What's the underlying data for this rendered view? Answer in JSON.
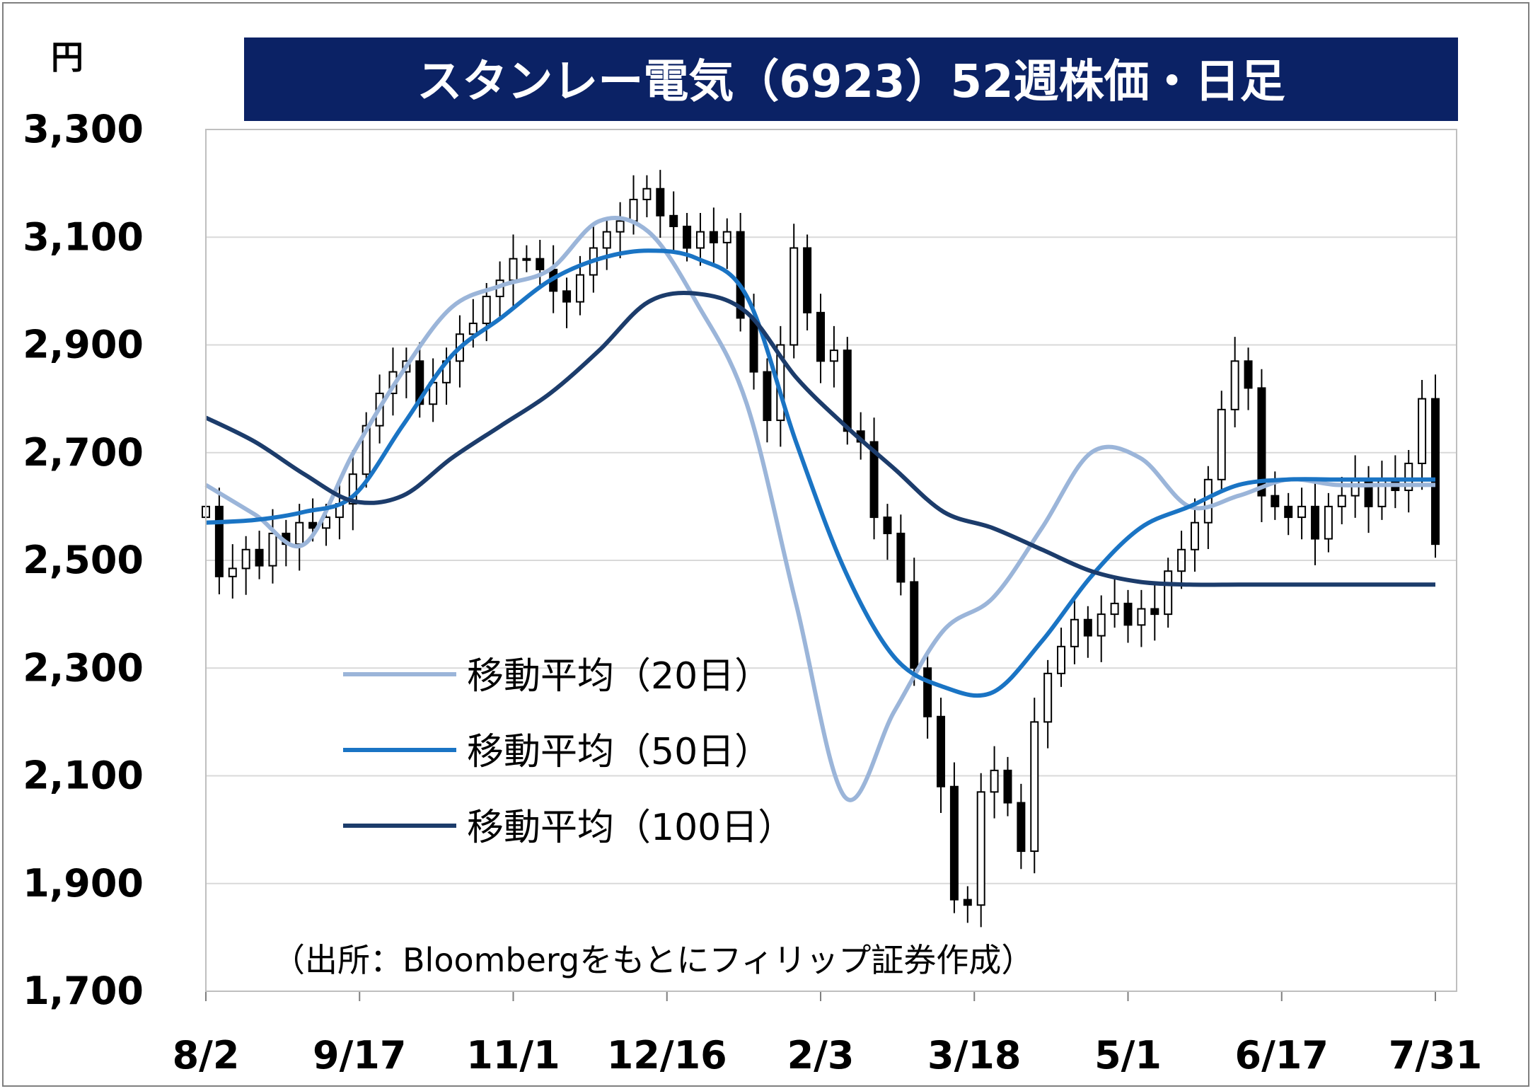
{
  "chart_data": {
    "type": "candlestick",
    "title": "スタンレー電気（6923）52週株価・日足",
    "ylabel": "円",
    "ylim": [
      1700,
      3300
    ],
    "y_ticks": [
      "3,300",
      "3,100",
      "2,900",
      "2,700",
      "2,500",
      "2,300",
      "2,100",
      "1,900",
      "1,700"
    ],
    "x_ticks": [
      "8/2",
      "9/17",
      "11/1",
      "12/16",
      "2/3",
      "3/18",
      "5/1",
      "6/17",
      "7/31"
    ],
    "grid": "horizontal",
    "legend": {
      "placement": "center-left",
      "entries": [
        "移動平均（20日）",
        "移動平均（50日）",
        "移動平均（100日）"
      ]
    },
    "source_note": "（出所：Bloombergをもとにフィリップ証券作成）",
    "colors": {
      "title_bg": "#0b2265",
      "ma20": "#9bb5d9",
      "ma50": "#1a74c4",
      "ma100": "#1c3c6b",
      "grid": "#d9d9d9",
      "candle": "#000000"
    },
    "ma_x": [
      0,
      0.04,
      0.08,
      0.12,
      0.16,
      0.2,
      0.24,
      0.28,
      0.32,
      0.36,
      0.4,
      0.44,
      0.48,
      0.52,
      0.56,
      0.6,
      0.64,
      0.68,
      0.72,
      0.76,
      0.8,
      0.84,
      0.88,
      0.92,
      0.96,
      1.0
    ],
    "series": [
      {
        "name": "移動平均（20日）",
        "values": [
          2640,
          2585,
          2530,
          2700,
          2850,
          2970,
          3010,
          3040,
          3130,
          3110,
          2975,
          2790,
          2420,
          2060,
          2220,
          2370,
          2430,
          2560,
          2700,
          2690,
          2600,
          2620,
          2650,
          2640,
          2640,
          2640
        ]
      },
      {
        "name": "移動平均（50日）",
        "values": [
          2570,
          2575,
          2590,
          2620,
          2750,
          2880,
          2950,
          3020,
          3060,
          3075,
          3060,
          2990,
          2720,
          2480,
          2320,
          2265,
          2255,
          2350,
          2470,
          2560,
          2600,
          2640,
          2650,
          2650,
          2650,
          2650
        ]
      },
      {
        "name": "移動平均（100日）",
        "values": [
          2765,
          2720,
          2660,
          2610,
          2620,
          2690,
          2750,
          2810,
          2890,
          2980,
          2995,
          2960,
          2840,
          2750,
          2670,
          2590,
          2560,
          2520,
          2480,
          2460,
          2455,
          2455,
          2455,
          2455,
          2455,
          2455
        ]
      }
    ],
    "candle_closes": [
      2600,
      2470,
      2485,
      2520,
      2490,
      2550,
      2530,
      2570,
      2560,
      2580,
      2605,
      2660,
      2750,
      2810,
      2850,
      2870,
      2790,
      2830,
      2870,
      2920,
      2940,
      2990,
      3020,
      3060,
      3060,
      3040,
      3000,
      2980,
      3030,
      3080,
      3110,
      3130,
      3170,
      3190,
      3140,
      3120,
      3080,
      3110,
      3090,
      3110,
      2950,
      2850,
      2760,
      2900,
      3080,
      2960,
      2870,
      2890,
      2740,
      2720,
      2580,
      2550,
      2460,
      2300,
      2210,
      2080,
      1870,
      1860,
      2070,
      2110,
      2050,
      1960,
      2200,
      2290,
      2340,
      2390,
      2360,
      2400,
      2420,
      2380,
      2410,
      2400,
      2480,
      2520,
      2570,
      2650,
      2780,
      2870,
      2820,
      2620,
      2600,
      2580,
      2600,
      2540,
      2600,
      2620,
      2650,
      2600,
      2650,
      2630,
      2680,
      2800,
      2530
    ]
  }
}
